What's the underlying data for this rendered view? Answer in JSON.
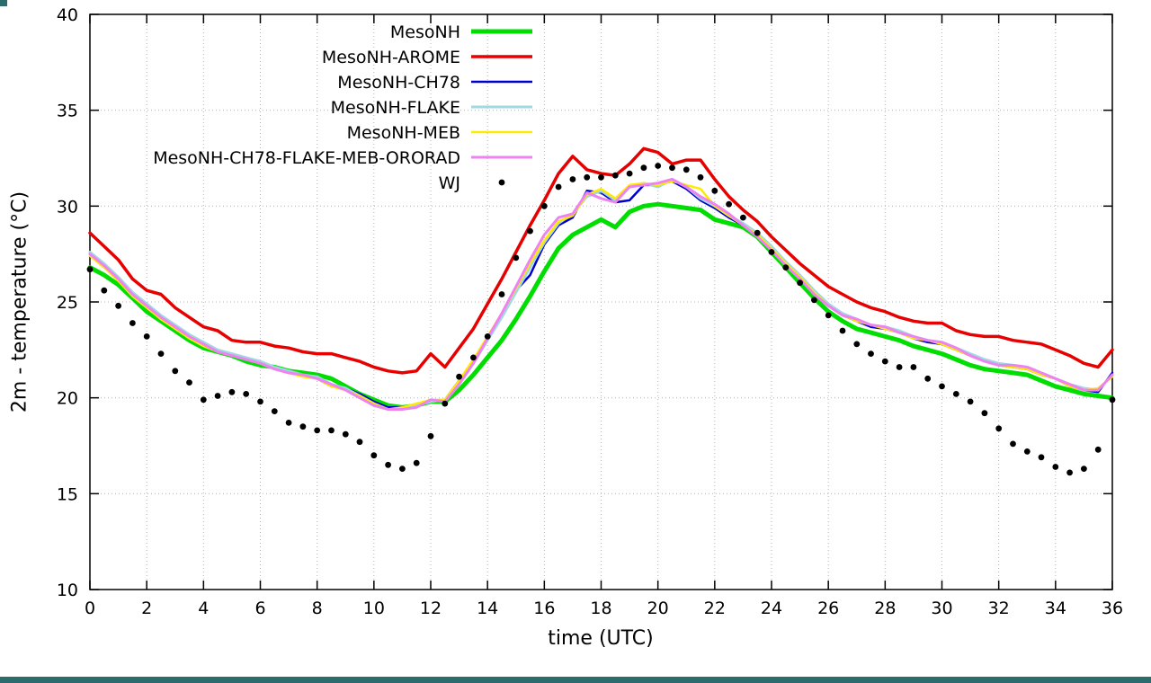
{
  "chrome": {
    "bottom_bar_color": "#2d6c6c",
    "corner_mark_color": "#2d6c6c"
  },
  "chart_data": {
    "type": "line",
    "title": "",
    "xlabel": "time (UTC)",
    "ylabel": "2m - temperature (°C)",
    "xlim": [
      0,
      36
    ],
    "ylim": [
      10,
      40
    ],
    "xticks": [
      0,
      2,
      4,
      6,
      8,
      10,
      12,
      14,
      16,
      18,
      20,
      22,
      24,
      26,
      28,
      30,
      32,
      34,
      36
    ],
    "yticks": [
      10,
      15,
      20,
      25,
      30,
      35,
      40
    ],
    "grid": "dotted",
    "legend_position": "top-center",
    "x": [
      0,
      0.5,
      1,
      1.5,
      2,
      2.5,
      3,
      3.5,
      4,
      4.5,
      5,
      5.5,
      6,
      6.5,
      7,
      7.5,
      8,
      8.5,
      9,
      9.5,
      10,
      10.5,
      11,
      11.5,
      12,
      12.5,
      13,
      13.5,
      14,
      14.5,
      15,
      15.5,
      16,
      16.5,
      17,
      17.5,
      18,
      18.5,
      19,
      19.5,
      20,
      20.5,
      21,
      21.5,
      22,
      22.5,
      23,
      23.5,
      24,
      24.5,
      25,
      25.5,
      26,
      26.5,
      27,
      27.5,
      28,
      28.5,
      29,
      29.5,
      30,
      30.5,
      31,
      31.5,
      32,
      32.5,
      33,
      33.5,
      34,
      34.5,
      35,
      35.5,
      36
    ],
    "series": [
      {
        "name": "MesoNH",
        "color": "#00dd00",
        "style": "line",
        "width": 5,
        "values": [
          26.8,
          26.4,
          25.9,
          25.2,
          24.5,
          24.0,
          23.5,
          23.0,
          22.6,
          22.4,
          22.2,
          21.9,
          21.7,
          21.6,
          21.4,
          21.3,
          21.2,
          21.0,
          20.6,
          20.2,
          19.9,
          19.6,
          19.5,
          19.6,
          19.8,
          19.8,
          20.4,
          21.2,
          22.1,
          23.0,
          24.1,
          25.3,
          26.6,
          27.8,
          28.5,
          28.9,
          29.3,
          28.9,
          29.7,
          30.0,
          30.1,
          30.0,
          29.9,
          29.8,
          29.3,
          29.1,
          28.9,
          28.4,
          27.6,
          26.8,
          26.0,
          25.2,
          24.5,
          24.0,
          23.6,
          23.4,
          23.2,
          23.0,
          22.7,
          22.5,
          22.3,
          22.0,
          21.7,
          21.5,
          21.4,
          21.3,
          21.2,
          20.9,
          20.6,
          20.4,
          20.2,
          20.1,
          20.0
        ]
      },
      {
        "name": "MesoNH-AROME",
        "color": "#e60000",
        "style": "line",
        "width": 3.5,
        "values": [
          28.6,
          27.9,
          27.2,
          26.2,
          25.6,
          25.4,
          24.7,
          24.2,
          23.7,
          23.5,
          23.0,
          22.9,
          22.9,
          22.7,
          22.6,
          22.4,
          22.3,
          22.3,
          22.1,
          21.9,
          21.6,
          21.4,
          21.3,
          21.4,
          22.3,
          21.6,
          22.6,
          23.6,
          24.9,
          26.2,
          27.6,
          29.0,
          30.3,
          31.7,
          32.6,
          31.9,
          31.7,
          31.6,
          32.2,
          33.0,
          32.8,
          32.2,
          32.4,
          32.4,
          31.4,
          30.5,
          29.8,
          29.2,
          28.4,
          27.7,
          27.0,
          26.4,
          25.8,
          25.4,
          25.0,
          24.7,
          24.5,
          24.2,
          24.0,
          23.9,
          23.9,
          23.5,
          23.3,
          23.2,
          23.2,
          23.0,
          22.9,
          22.8,
          22.5,
          22.2,
          21.8,
          21.6,
          22.5
        ]
      },
      {
        "name": "MesoNH-CH78",
        "color": "#0000cc",
        "style": "line",
        "width": 2.5,
        "values": [
          27.5,
          26.9,
          26.2,
          25.4,
          24.8,
          24.2,
          23.7,
          23.2,
          22.8,
          22.4,
          22.3,
          22.0,
          21.8,
          21.5,
          21.3,
          21.2,
          21.0,
          20.6,
          20.5,
          20.2,
          19.8,
          19.5,
          19.5,
          19.6,
          19.9,
          19.9,
          20.9,
          21.9,
          23.1,
          24.3,
          25.6,
          26.4,
          28.0,
          29.0,
          29.4,
          30.8,
          30.7,
          30.2,
          30.3,
          31.1,
          31.1,
          31.3,
          30.9,
          30.3,
          29.9,
          29.4,
          29.0,
          28.5,
          27.8,
          27.0,
          26.3,
          25.5,
          24.8,
          24.3,
          24.0,
          23.7,
          23.6,
          23.4,
          23.1,
          22.9,
          22.8,
          22.5,
          22.2,
          21.9,
          21.7,
          21.6,
          21.5,
          21.2,
          21.0,
          20.6,
          20.4,
          20.3,
          21.3
        ]
      },
      {
        "name": "MesoNH-FLAKE",
        "color": "#a0d8e6",
        "style": "line",
        "width": 3,
        "values": [
          27.6,
          27.0,
          26.3,
          25.5,
          24.9,
          24.3,
          23.8,
          23.3,
          22.9,
          22.5,
          22.3,
          22.1,
          21.9,
          21.6,
          21.4,
          21.2,
          21.1,
          20.7,
          20.5,
          20.1,
          19.7,
          19.4,
          19.4,
          19.6,
          19.8,
          19.9,
          20.8,
          21.8,
          23.0,
          24.2,
          25.5,
          26.8,
          28.1,
          29.1,
          29.6,
          30.5,
          30.8,
          30.3,
          31.0,
          31.2,
          31.0,
          31.4,
          31.0,
          30.4,
          30.0,
          29.5,
          29.1,
          28.6,
          27.9,
          27.1,
          26.4,
          25.6,
          24.9,
          24.4,
          24.1,
          23.8,
          23.7,
          23.5,
          23.2,
          23.0,
          22.9,
          22.6,
          22.3,
          22.0,
          21.8,
          21.7,
          21.6,
          21.3,
          21.0,
          20.7,
          20.5,
          20.4,
          21.2
        ]
      },
      {
        "name": "MesoNH-MEB",
        "color": "#ffeb00",
        "style": "line",
        "width": 2.5,
        "values": [
          27.4,
          26.8,
          26.1,
          25.3,
          24.7,
          24.1,
          23.6,
          23.1,
          22.7,
          22.4,
          22.2,
          22.0,
          21.8,
          21.5,
          21.3,
          21.1,
          21.0,
          20.6,
          20.4,
          20.1,
          19.7,
          19.4,
          19.5,
          19.7,
          19.9,
          19.9,
          20.9,
          22.0,
          23.2,
          24.4,
          25.7,
          27.0,
          28.2,
          29.2,
          29.5,
          30.6,
          30.9,
          30.4,
          31.1,
          31.2,
          31.1,
          31.3,
          31.1,
          30.9,
          30.0,
          29.5,
          29.0,
          28.5,
          27.8,
          27.0,
          26.3,
          25.5,
          24.8,
          24.3,
          24.0,
          23.8,
          23.6,
          23.4,
          23.1,
          23.0,
          22.8,
          22.5,
          22.2,
          21.9,
          21.7,
          21.6,
          21.5,
          21.2,
          21.0,
          20.6,
          20.4,
          20.5,
          21.1
        ]
      },
      {
        "name": "MesoNH-CH78-FLAKE-MEB-ORORAD",
        "color": "#ee82ee",
        "style": "line",
        "width": 3,
        "values": [
          27.5,
          26.9,
          26.2,
          25.4,
          24.8,
          24.2,
          23.7,
          23.2,
          22.8,
          22.4,
          22.2,
          22.0,
          21.8,
          21.5,
          21.3,
          21.2,
          21.0,
          20.7,
          20.4,
          20.0,
          19.6,
          19.4,
          19.4,
          19.5,
          19.9,
          19.8,
          20.7,
          21.8,
          23.1,
          24.4,
          25.8,
          27.2,
          28.5,
          29.4,
          29.6,
          30.7,
          30.4,
          30.2,
          31.0,
          31.1,
          31.2,
          31.4,
          31.0,
          30.5,
          30.1,
          29.6,
          29.0,
          28.4,
          27.7,
          26.9,
          26.2,
          25.4,
          24.8,
          24.3,
          24.1,
          23.8,
          23.7,
          23.4,
          23.2,
          23.0,
          22.9,
          22.6,
          22.2,
          21.9,
          21.7,
          21.7,
          21.6,
          21.3,
          21.0,
          20.7,
          20.4,
          20.4,
          21.2
        ]
      },
      {
        "name": "WJ",
        "color": "#000000",
        "style": "points",
        "width": 2,
        "values": [
          26.7,
          25.6,
          24.8,
          23.9,
          23.2,
          22.3,
          21.4,
          20.8,
          19.9,
          20.1,
          20.3,
          20.2,
          19.8,
          19.3,
          18.7,
          18.5,
          18.3,
          18.3,
          18.1,
          17.7,
          17.0,
          16.5,
          16.3,
          16.6,
          18.0,
          19.7,
          21.1,
          22.1,
          23.2,
          25.4,
          27.3,
          28.7,
          30.0,
          31.0,
          31.4,
          31.5,
          31.5,
          31.6,
          31.7,
          32.0,
          32.1,
          32.0,
          31.9,
          31.5,
          30.8,
          30.1,
          29.4,
          28.6,
          27.6,
          26.8,
          26.0,
          25.1,
          24.3,
          23.5,
          22.8,
          22.3,
          21.9,
          21.6,
          21.6,
          21.0,
          20.6,
          20.2,
          19.8,
          19.2,
          18.4,
          17.6,
          17.2,
          16.9,
          16.4,
          16.1,
          16.3,
          17.3,
          19.9
        ]
      }
    ]
  }
}
